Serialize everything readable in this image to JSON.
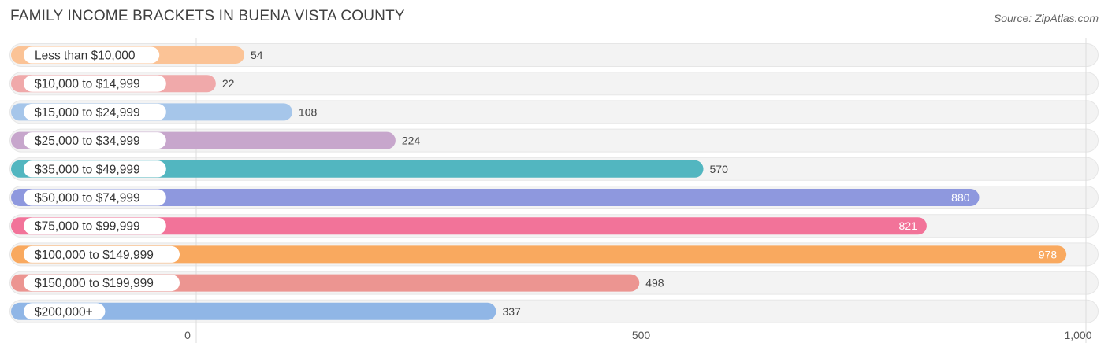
{
  "title": "FAMILY INCOME BRACKETS IN BUENA VISTA COUNTY",
  "source": "Source: ZipAtlas.com",
  "chart_data": {
    "type": "bar",
    "orientation": "horizontal",
    "title": "FAMILY INCOME BRACKETS IN BUENA VISTA COUNTY",
    "xlabel": "",
    "ylabel": "",
    "xlim": [
      0,
      1000
    ],
    "ticks": [
      0,
      500,
      1000
    ],
    "tick_labels": [
      "0",
      "500",
      "1,000"
    ],
    "categories": [
      "Less than $10,000",
      "$10,000 to $14,999",
      "$15,000 to $24,999",
      "$25,000 to $34,999",
      "$35,000 to $49,999",
      "$50,000 to $74,999",
      "$75,000 to $99,999",
      "$100,000 to $149,999",
      "$150,000 to $199,999",
      "$200,000+"
    ],
    "values": [
      54,
      22,
      108,
      224,
      570,
      880,
      821,
      978,
      498,
      337
    ],
    "value_labels": [
      "54",
      "22",
      "108",
      "224",
      "570",
      "880",
      "821",
      "978",
      "498",
      "337"
    ],
    "colors": [
      "#fbc396",
      "#f0a9aa",
      "#a6c6ea",
      "#c7a6cc",
      "#52b6c0",
      "#8e98de",
      "#f27399",
      "#f9a95f",
      "#ec9591",
      "#90b6e6"
    ]
  }
}
